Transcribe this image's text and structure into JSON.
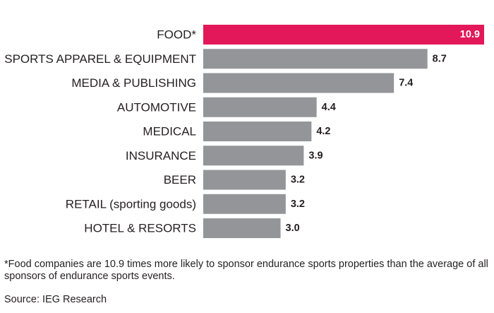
{
  "chart_data": {
    "type": "bar",
    "orientation": "horizontal",
    "categories": [
      "FOOD*",
      "SPORTS APPAREL & EQUIPMENT",
      "MEDIA & PUBLISHING",
      "AUTOMOTIVE",
      "MEDICAL",
      "INSURANCE",
      "BEER",
      "RETAIL (sporting goods)",
      "HOTEL & RESORTS"
    ],
    "values": [
      10.9,
      8.7,
      7.4,
      4.4,
      4.2,
      3.9,
      3.2,
      3.2,
      3.0
    ],
    "value_labels": [
      "10.9",
      "8.7",
      "7.4",
      "4.4",
      "4.2",
      "3.9",
      "3.2",
      "3.2",
      "3.0"
    ],
    "highlight_index": 0,
    "colors": {
      "highlight": "#e2185b",
      "bar": "#939598",
      "text": "#231f20",
      "highlight_text": "#ffffff"
    },
    "xlim": [
      0,
      10.9
    ],
    "grid": false,
    "legend": "none"
  },
  "footnote": "*Food companies are 10.9 times more likely to sponsor endurance sports properties than the average of all sponsors of endurance sports events.",
  "source": "Source: IEG Research"
}
